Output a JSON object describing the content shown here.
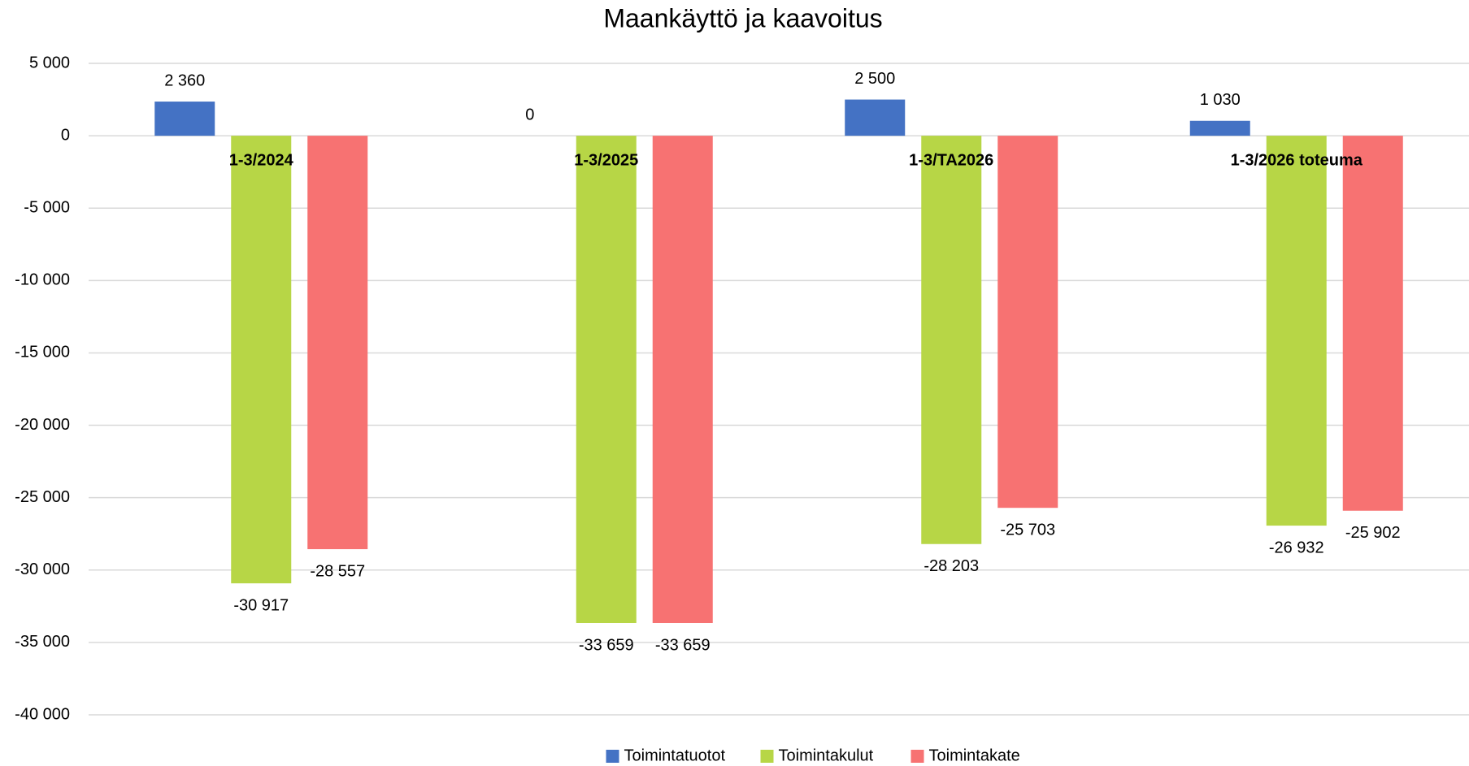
{
  "chart_data": {
    "type": "bar",
    "title": "Maankäyttö ja kaavoitus",
    "categories": [
      "1-3/2024",
      "1-3/2025",
      "1-3/TA2026",
      "1-3/2026 toteuma"
    ],
    "series": [
      {
        "name": "Toimintatuotot",
        "color": "#4472c4",
        "values": [
          2360,
          0,
          2500,
          1030
        ],
        "value_labels": [
          "2 360",
          "0",
          "2 500",
          "1 030"
        ]
      },
      {
        "name": "Toimintakulut",
        "color": "#b7d646",
        "values": [
          -30917,
          -33659,
          -28203,
          -26932
        ],
        "value_labels": [
          "-30 917",
          "-33 659",
          "-28 203",
          "-26 932"
        ]
      },
      {
        "name": "Toimintakate",
        "color": "#f77272",
        "values": [
          -28557,
          -33659,
          -25703,
          -25902
        ],
        "value_labels": [
          "-28 557",
          "-33 659",
          "-25 703",
          "-25 902"
        ]
      }
    ],
    "ylim": [
      -40000,
      5000
    ],
    "yticks": [
      {
        "value": 5000,
        "label": "5 000"
      },
      0,
      {
        "value": -5000,
        "label": "-5 000"
      },
      {
        "value": -10000,
        "label": "-10 000"
      },
      {
        "value": -15000,
        "label": "-15 000"
      },
      {
        "value": -20000,
        "label": "-20 000"
      },
      {
        "value": -25000,
        "label": "-25 000"
      },
      {
        "value": -30000,
        "label": "-30 000"
      },
      {
        "value": -35000,
        "label": "-35 000"
      },
      {
        "value": -40000,
        "label": "-40 000"
      }
    ],
    "grid": true,
    "legend": "bottom"
  }
}
